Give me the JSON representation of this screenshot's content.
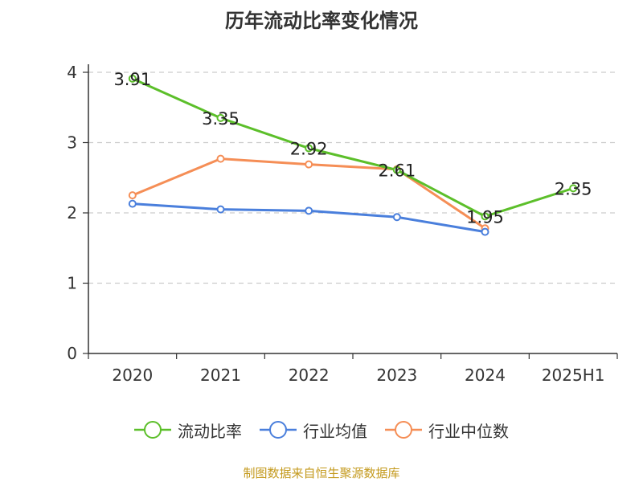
{
  "chart_data": {
    "type": "line",
    "title": "历年流动比率变化情况",
    "categories": [
      "2020",
      "2021",
      "2022",
      "2023",
      "2024",
      "2025H1"
    ],
    "ylim": [
      0,
      4
    ],
    "yticks": [
      "0",
      "1",
      "2",
      "3",
      "4"
    ],
    "grid": true,
    "legend_position": "bottom",
    "series": [
      {
        "name": "流动比率",
        "color": "#5cbf2a",
        "values": [
          3.91,
          3.35,
          2.92,
          2.61,
          1.95,
          2.35
        ],
        "labels": [
          "3.91",
          "3.35",
          "2.92",
          "2.61",
          "1.95",
          "2.35"
        ]
      },
      {
        "name": "行业均值",
        "color": "#4a7fdc",
        "values": [
          2.13,
          2.05,
          2.03,
          1.94,
          1.73,
          null
        ],
        "labels": []
      },
      {
        "name": "行业中位数",
        "color": "#f58e56",
        "values": [
          2.25,
          2.77,
          2.69,
          2.62,
          1.78,
          null
        ],
        "labels": []
      }
    ]
  },
  "footer": {
    "source": "制图数据来自恒生聚源数据库"
  }
}
